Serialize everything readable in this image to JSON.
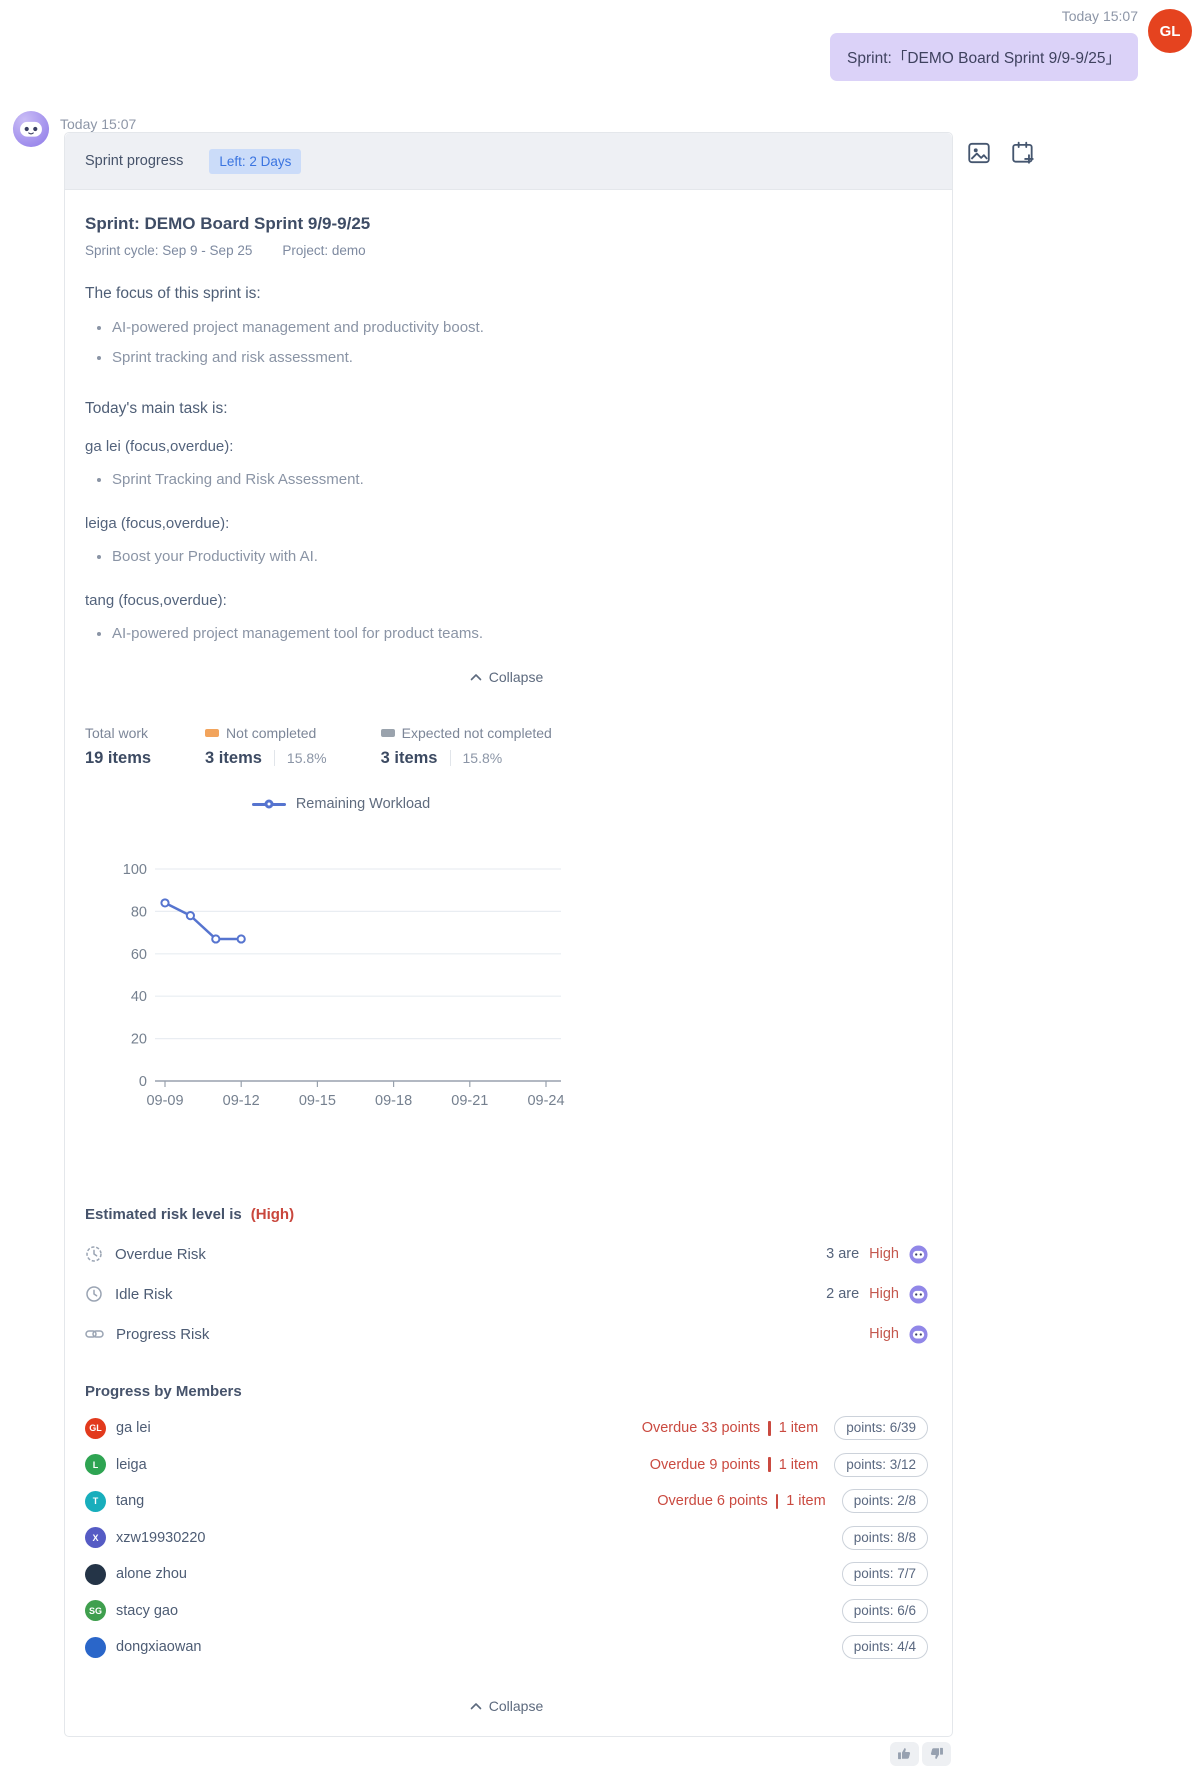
{
  "accent_colors": {
    "badge_bg": "#cbdcf9",
    "badge_text": "#3a74e0",
    "bubble_bg": "#dbd2f8",
    "overdue_red": "#ca4a40",
    "risk_red": "#c4584e",
    "chart_line": "#5674cf",
    "not_completed_orange": "#f2a45c",
    "expected_gray": "#9aa3ad"
  },
  "icons": {
    "bot_avatar": "robot-avatar",
    "top_right": [
      "image-icon",
      "calendar-add-icon"
    ],
    "risk_rows": [
      "overdue-risk-icon",
      "idle-risk-icon",
      "progress-risk-icon"
    ],
    "feedback": [
      "thumbs-up-icon",
      "thumbs-down-icon"
    ],
    "collapse": "chevron-up-icon"
  },
  "user_message": {
    "time": "Today 15:07",
    "avatar_initials": "GL",
    "text": "Sprint:「DEMO Board Sprint 9/9-9/25」"
  },
  "bot_message": {
    "time": "Today 15:07"
  },
  "card": {
    "header": {
      "title": "Sprint progress",
      "badge": "Left: 2 Days"
    },
    "sprint": {
      "title": "Sprint: DEMO Board Sprint 9/9-9/25",
      "cycle": "Sprint cycle: Sep 9 - Sep 25",
      "project": "Project: demo"
    },
    "focus": {
      "heading": "The focus of this sprint is:",
      "items": [
        "AI-powered project management and productivity boost.",
        "Sprint tracking and risk assessment."
      ]
    },
    "today": {
      "heading": "Today's main task is:",
      "groups": [
        {
          "name": "ga lei (focus,overdue):",
          "items": [
            "Sprint Tracking and Risk Assessment."
          ]
        },
        {
          "name": "leiga (focus,overdue):",
          "items": [
            "Boost your Productivity with AI."
          ]
        },
        {
          "name": "tang (focus,overdue):",
          "items": [
            "AI-powered project management tool for product teams."
          ]
        }
      ]
    },
    "collapse_label": "Collapse",
    "stats": [
      {
        "label": "Total work",
        "value": "19 items",
        "swatch": "",
        "pct": ""
      },
      {
        "label": "Not completed",
        "value": "3 items",
        "swatch": "#f2a45c",
        "pct": "15.8%"
      },
      {
        "label": "Expected not completed",
        "value": "3 items",
        "swatch": "#9aa3ad",
        "pct": "15.8%"
      }
    ],
    "chart_data": {
      "type": "line",
      "title": "",
      "legend": [
        "Remaining Workload"
      ],
      "legend_position": "top-center",
      "grid": true,
      "ylim": [
        0,
        100
      ],
      "y_ticks": [
        0,
        20,
        40,
        60,
        80,
        100
      ],
      "x_tick_labels": [
        "09-09",
        "09-12",
        "09-15",
        "09-18",
        "09-21",
        "09-24"
      ],
      "x_days_per_tick": 3,
      "series": [
        {
          "name": "Remaining Workload",
          "color": "#5674cf",
          "x_day_offsets": [
            0,
            1,
            2,
            3
          ],
          "values": [
            84,
            78,
            67,
            67
          ]
        }
      ]
    },
    "risk": {
      "heading": "Estimated risk level is",
      "heading_level": "(High)",
      "rows": [
        {
          "icon": "overdue-risk-icon",
          "label": "Overdue Risk",
          "count": "3 are",
          "level": "High"
        },
        {
          "icon": "idle-risk-icon",
          "label": "Idle Risk",
          "count": "2 are",
          "level": "High"
        },
        {
          "icon": "progress-risk-icon",
          "label": "Progress Risk",
          "count": "",
          "level": "High"
        }
      ]
    },
    "members": {
      "heading": "Progress by Members",
      "rows": [
        {
          "name": "ga lei",
          "avatar_text": "GL",
          "avatar_bg": "#e23a1d",
          "overdue": "Overdue 33 points",
          "item": "1 item",
          "points": "points: 6/39"
        },
        {
          "name": "leiga",
          "avatar_text": "L",
          "avatar_bg": "#2ea452",
          "overdue": "Overdue 9 points",
          "item": "1 item",
          "points": "points: 3/12"
        },
        {
          "name": "tang",
          "avatar_text": "T",
          "avatar_bg": "#18aebc",
          "overdue": "Overdue 6 points",
          "item": "1 item",
          "points": "points: 2/8"
        },
        {
          "name": "xzw19930220",
          "avatar_text": "X",
          "avatar_bg": "#555bc4",
          "overdue": "",
          "item": "",
          "points": "points: 8/8"
        },
        {
          "name": "alone zhou",
          "avatar_text": "",
          "avatar_bg": "#243447",
          "overdue": "",
          "item": "",
          "points": "points: 7/7"
        },
        {
          "name": "stacy gao",
          "avatar_text": "SG",
          "avatar_bg": "#3f9f4e",
          "overdue": "",
          "item": "",
          "points": "points: 6/6"
        },
        {
          "name": "dongxiaowan",
          "avatar_text": "",
          "avatar_bg": "#2a66c9",
          "overdue": "",
          "item": "",
          "points": "points: 4/4"
        }
      ]
    }
  }
}
